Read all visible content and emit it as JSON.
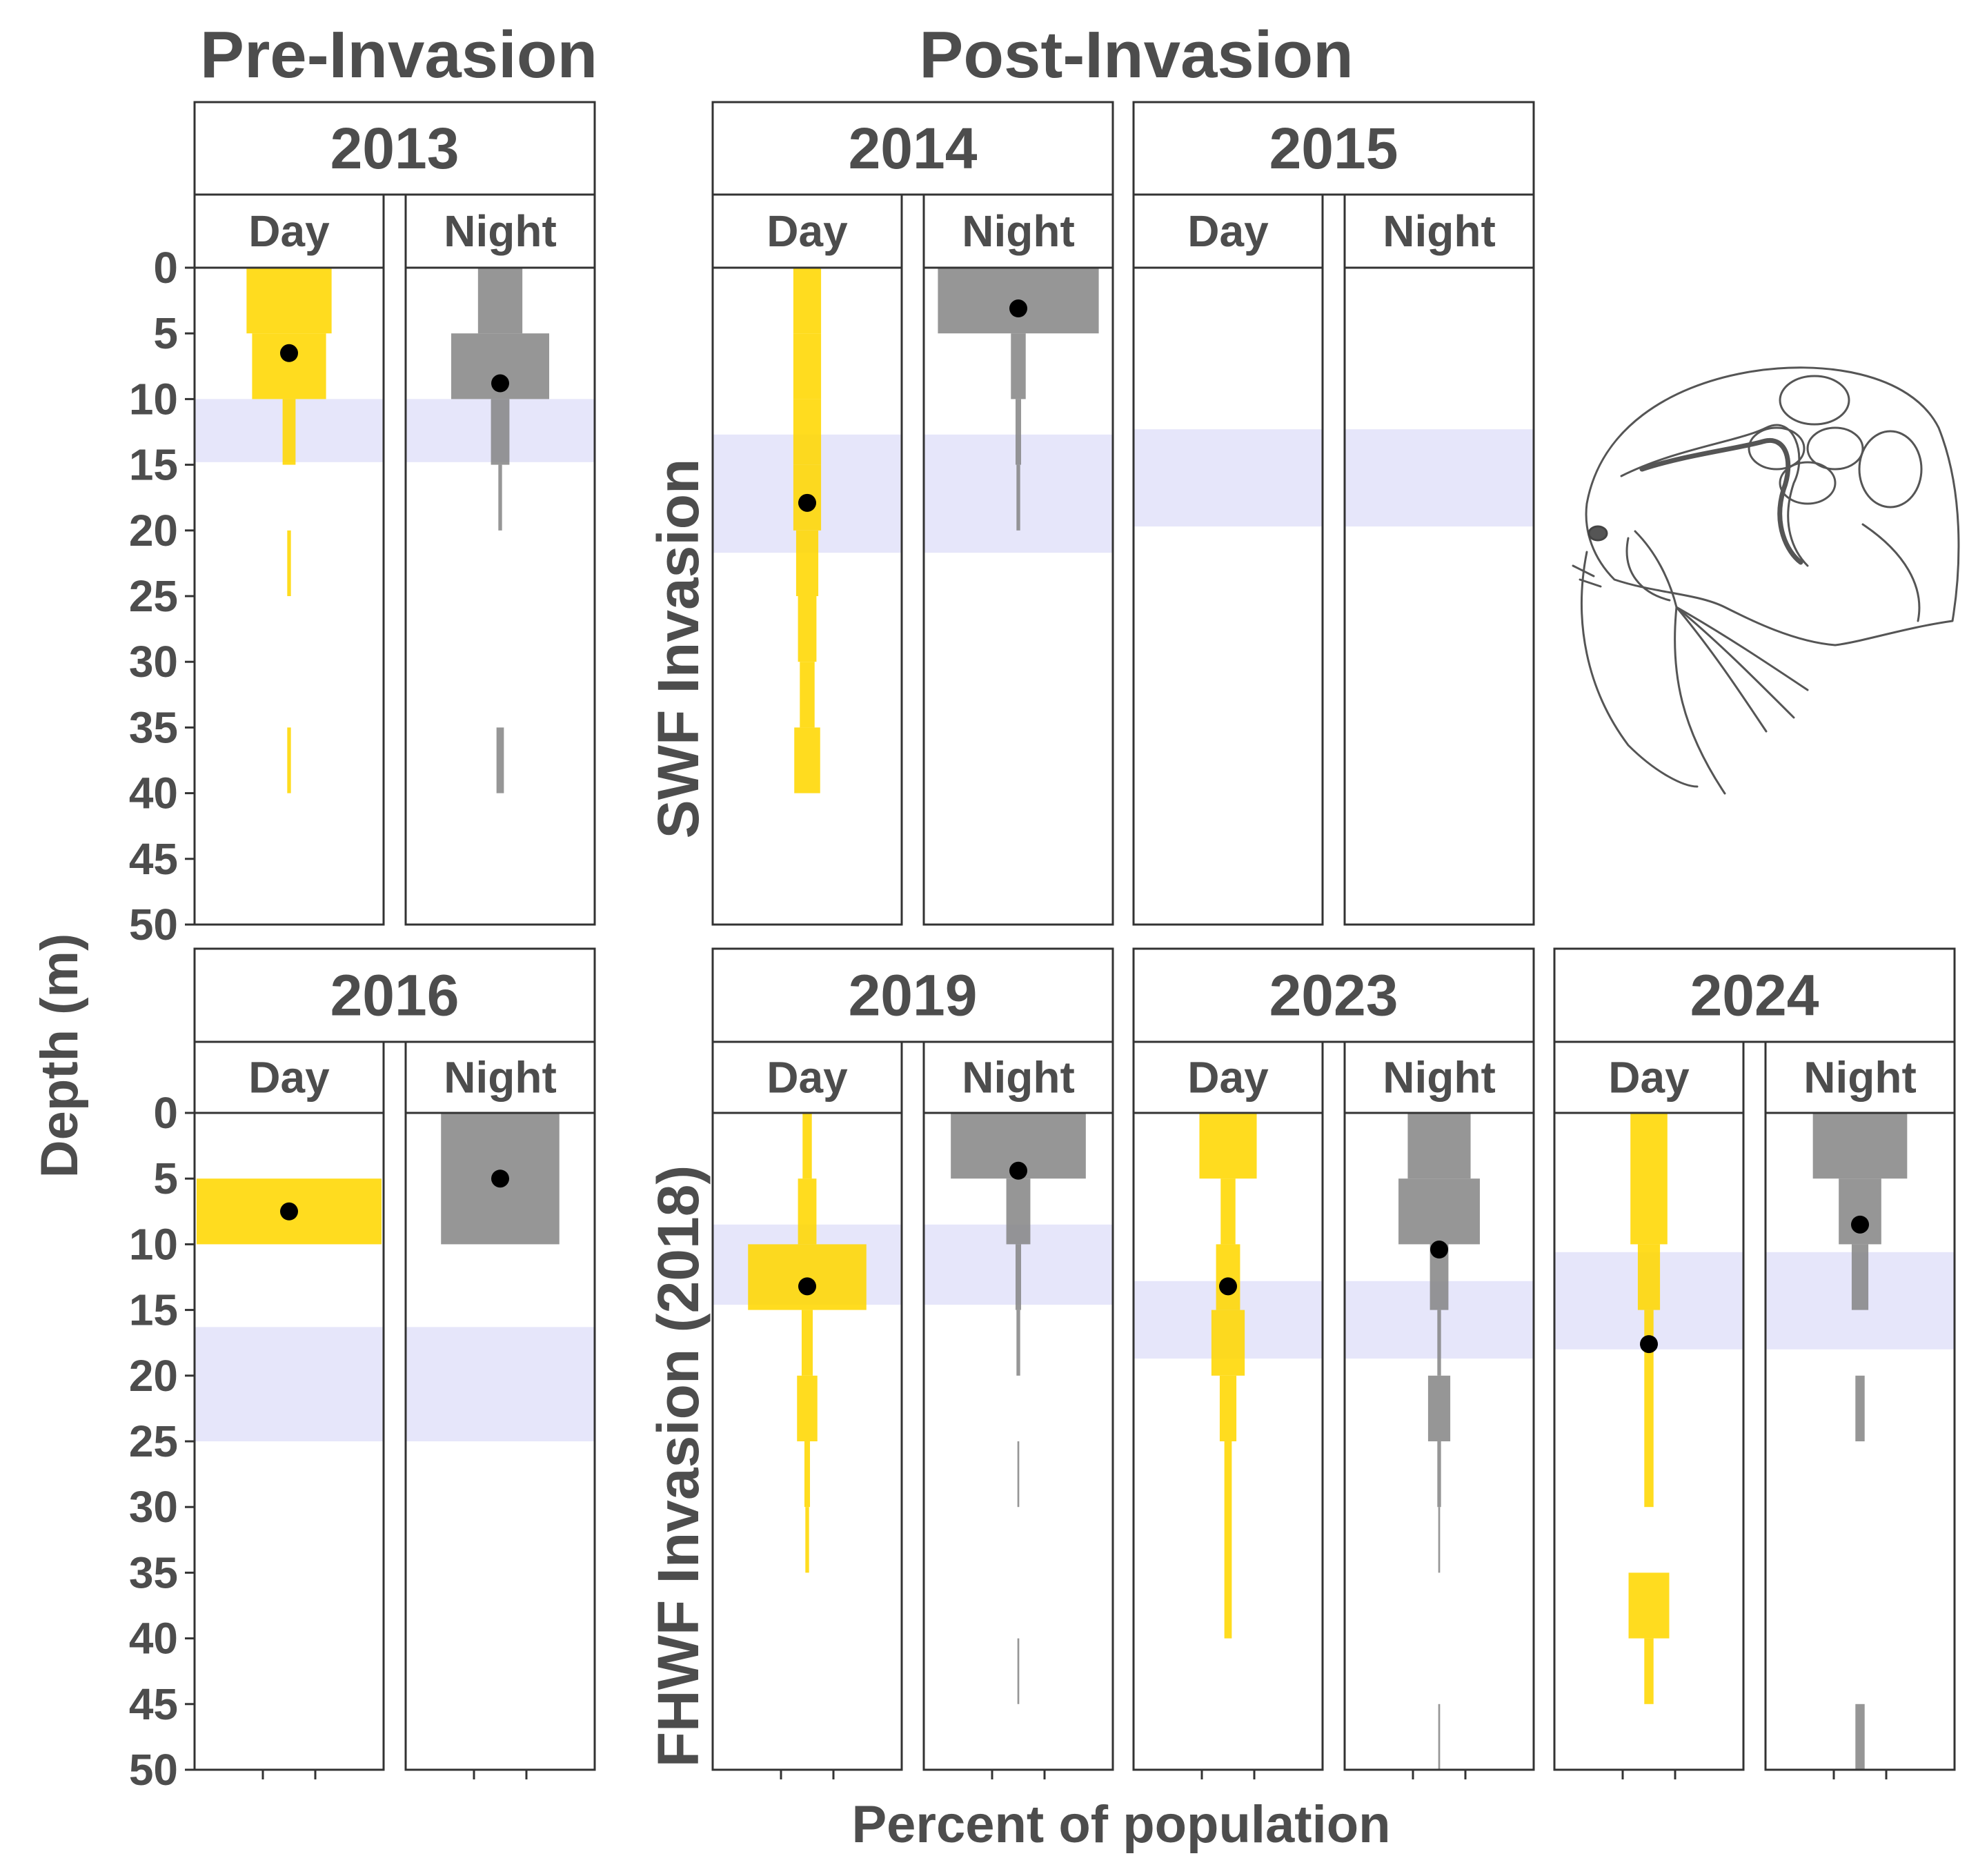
{
  "titles": {
    "pre_invasion": "Pre-Invasion",
    "post_invasion": "Post-Invasion"
  },
  "axes": {
    "ylabel": "Depth (m)",
    "xlabel": "Percent of population",
    "row_labels": [
      "SWF Invasion",
      "FHWF Invasion (2018)"
    ]
  },
  "colors": {
    "day": "#FFD700",
    "night": "#888888",
    "thermocline": "#E6E6FA",
    "mean_point": "#000000",
    "frame": "#333333",
    "text": "#4d4d4d"
  },
  "illustration": {
    "name": "daphnia-drawing",
    "alt": "Line drawing of a Daphnia (water flea)"
  },
  "chart_data": {
    "type": "bar",
    "subtype": "kite-diagram depth distribution",
    "y_axis": {
      "label": "Depth (m)",
      "ylim": [
        0,
        50
      ],
      "ticks": [
        0,
        5,
        10,
        15,
        20,
        25,
        30,
        35,
        40,
        45,
        50
      ],
      "reversed": true
    },
    "x_axis": {
      "label": "Percent of population",
      "tick_labels_shown": false
    },
    "series_names": [
      "Day",
      "Night"
    ],
    "bin_size_m": 5,
    "panels": [
      {
        "year": "2013",
        "group": "Pre-Invasion",
        "day": {
          "label": "Day",
          "bins": [
            {
              "top": 0,
              "bottom": 5,
              "pct": 46
            },
            {
              "top": 5,
              "bottom": 10,
              "pct": 40
            },
            {
              "top": 10,
              "bottom": 15,
              "pct": 7
            },
            {
              "top": 20,
              "bottom": 25,
              "pct": 2
            },
            {
              "top": 35,
              "bottom": 40,
              "pct": 2
            }
          ],
          "mean_depth": 6.5
        },
        "night": {
          "label": "Night",
          "bins": [
            {
              "top": 0,
              "bottom": 5,
              "pct": 24
            },
            {
              "top": 5,
              "bottom": 10,
              "pct": 53
            },
            {
              "top": 10,
              "bottom": 15,
              "pct": 10
            },
            {
              "top": 15,
              "bottom": 20,
              "pct": 2
            },
            {
              "top": 35,
              "bottom": 40,
              "pct": 4
            }
          ],
          "mean_depth": 8.8
        },
        "thermocline": [
          10,
          14.8
        ]
      },
      {
        "year": "2014",
        "group": "SWF Invasion",
        "day": {
          "label": "Day",
          "bins": [
            {
              "top": 0,
              "bottom": 5,
              "pct": 15
            },
            {
              "top": 5,
              "bottom": 10,
              "pct": 15
            },
            {
              "top": 10,
              "bottom": 15,
              "pct": 15
            },
            {
              "top": 15,
              "bottom": 20,
              "pct": 15
            },
            {
              "top": 20,
              "bottom": 25,
              "pct": 12
            },
            {
              "top": 25,
              "bottom": 30,
              "pct": 10
            },
            {
              "top": 30,
              "bottom": 35,
              "pct": 8
            },
            {
              "top": 35,
              "bottom": 40,
              "pct": 14
            }
          ],
          "mean_depth": 17.9
        },
        "night": {
          "label": "Night",
          "bins": [
            {
              "top": 0,
              "bottom": 5,
              "pct": 87
            },
            {
              "top": 5,
              "bottom": 10,
              "pct": 8
            },
            {
              "top": 10,
              "bottom": 15,
              "pct": 3
            },
            {
              "top": 15,
              "bottom": 20,
              "pct": 2
            }
          ],
          "mean_depth": 3.1
        },
        "thermocline": [
          12.7,
          21.7
        ]
      },
      {
        "year": "2015",
        "group": "SWF Invasion",
        "day": {
          "label": "Day",
          "bins": [],
          "mean_depth": null
        },
        "night": {
          "label": "Night",
          "bins": [],
          "mean_depth": null
        },
        "thermocline": [
          12.3,
          19.7
        ]
      },
      {
        "year": "2016",
        "group": "Pre-Invasion",
        "day": {
          "label": "Day",
          "bins": [
            {
              "top": 5,
              "bottom": 10,
              "pct": 100
            }
          ],
          "mean_depth": 7.5
        },
        "night": {
          "label": "Night",
          "bins": [
            {
              "top": 0,
              "bottom": 10,
              "pct": 64
            }
          ],
          "mean_depth": 5.0
        },
        "thermocline": [
          16.3,
          25
        ]
      },
      {
        "year": "2019",
        "group": "FHWF Invasion (2018)",
        "day": {
          "label": "Day",
          "bins": [
            {
              "top": 0,
              "bottom": 5,
              "pct": 5
            },
            {
              "top": 5,
              "bottom": 10,
              "pct": 10
            },
            {
              "top": 10,
              "bottom": 15,
              "pct": 64
            },
            {
              "top": 15,
              "bottom": 20,
              "pct": 6
            },
            {
              "top": 20,
              "bottom": 25,
              "pct": 11
            },
            {
              "top": 25,
              "bottom": 30,
              "pct": 3
            },
            {
              "top": 30,
              "bottom": 35,
              "pct": 2
            }
          ],
          "mean_depth": 13.2
        },
        "night": {
          "label": "Night",
          "bins": [
            {
              "top": 0,
              "bottom": 5,
              "pct": 73
            },
            {
              "top": 5,
              "bottom": 10,
              "pct": 13
            },
            {
              "top": 10,
              "bottom": 15,
              "pct": 3
            },
            {
              "top": 15,
              "bottom": 20,
              "pct": 2
            },
            {
              "top": 25,
              "bottom": 30,
              "pct": 1
            },
            {
              "top": 40,
              "bottom": 45,
              "pct": 1
            }
          ],
          "mean_depth": 4.4
        },
        "thermocline": [
          8.5,
          14.6
        ]
      },
      {
        "year": "2023",
        "group": "FHWF Invasion (2018)",
        "day": {
          "label": "Day",
          "bins": [
            {
              "top": 0,
              "bottom": 5,
              "pct": 31
            },
            {
              "top": 5,
              "bottom": 10,
              "pct": 8
            },
            {
              "top": 10,
              "bottom": 15,
              "pct": 13
            },
            {
              "top": 15,
              "bottom": 20,
              "pct": 18
            },
            {
              "top": 20,
              "bottom": 25,
              "pct": 9
            },
            {
              "top": 25,
              "bottom": 40,
              "pct": 4
            }
          ],
          "mean_depth": 13.2
        },
        "night": {
          "label": "Night",
          "bins": [
            {
              "top": 0,
              "bottom": 5,
              "pct": 34
            },
            {
              "top": 5,
              "bottom": 10,
              "pct": 44
            },
            {
              "top": 10,
              "bottom": 15,
              "pct": 10
            },
            {
              "top": 15,
              "bottom": 20,
              "pct": 2
            },
            {
              "top": 20,
              "bottom": 25,
              "pct": 12
            },
            {
              "top": 25,
              "bottom": 30,
              "pct": 2
            },
            {
              "top": 30,
              "bottom": 35,
              "pct": 1
            },
            {
              "top": 45,
              "bottom": 50,
              "pct": 1
            }
          ],
          "mean_depth": 10.4
        },
        "thermocline": [
          12.8,
          18.7
        ]
      },
      {
        "year": "2024",
        "group": "FHWF Invasion (2018)",
        "day": {
          "label": "Day",
          "bins": [
            {
              "top": 0,
              "bottom": 10,
              "pct": 20
            },
            {
              "top": 10,
              "bottom": 15,
              "pct": 12
            },
            {
              "top": 15,
              "bottom": 30,
              "pct": 5
            },
            {
              "top": 35,
              "bottom": 40,
              "pct": 22
            },
            {
              "top": 40,
              "bottom": 45,
              "pct": 5
            }
          ],
          "mean_depth": 17.6
        },
        "night": {
          "label": "Night",
          "bins": [
            {
              "top": 0,
              "bottom": 5,
              "pct": 51
            },
            {
              "top": 5,
              "bottom": 10,
              "pct": 23
            },
            {
              "top": 10,
              "bottom": 15,
              "pct": 9
            },
            {
              "top": 20,
              "bottom": 25,
              "pct": 5
            },
            {
              "top": 45,
              "bottom": 50,
              "pct": 5
            }
          ],
          "mean_depth": 8.5
        },
        "thermocline": [
          10.6,
          18
        ]
      }
    ]
  }
}
